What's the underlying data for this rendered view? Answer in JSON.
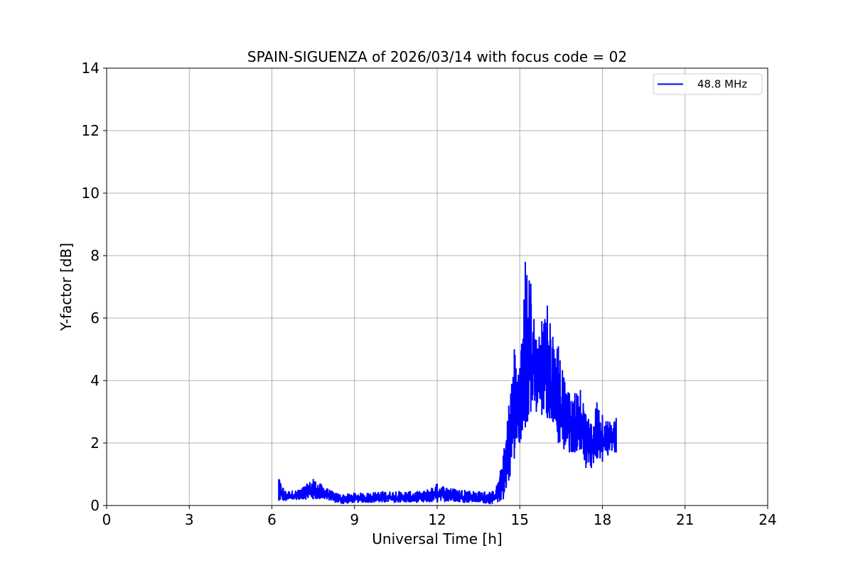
{
  "chart_data": {
    "type": "line",
    "title": "SPAIN-SIGUENZA of 2026/03/14 with focus code = 02",
    "xlabel": "Universal Time [h]",
    "ylabel": "Y-factor [dB]",
    "xlim": [
      0,
      24
    ],
    "ylim": [
      0,
      14
    ],
    "xticks": [
      "0",
      "3",
      "6",
      "9",
      "12",
      "15",
      "18",
      "21",
      "24"
    ],
    "yticks": [
      "0",
      "2",
      "4",
      "6",
      "8",
      "10",
      "12",
      "14"
    ],
    "grid": true,
    "legend_position": "top-right",
    "series": [
      {
        "name": "48.8 MHz",
        "color": "#0000ff",
        "x": [
          6.25,
          6.5,
          7.0,
          7.5,
          8.0,
          8.3,
          8.6,
          9.0,
          9.5,
          10.0,
          10.5,
          11.0,
          11.5,
          12.0,
          12.5,
          13.0,
          13.5,
          14.0,
          14.2,
          14.4,
          14.6,
          14.8,
          15.0,
          15.2,
          15.4,
          15.6,
          15.8,
          16.0,
          16.2,
          16.4,
          16.6,
          16.8,
          17.0,
          17.2,
          17.4,
          17.6,
          17.8,
          18.0,
          18.2,
          18.5
        ],
        "upper": [
          0.85,
          0.45,
          0.5,
          0.85,
          0.55,
          0.4,
          0.35,
          0.4,
          0.4,
          0.45,
          0.45,
          0.45,
          0.45,
          0.7,
          0.55,
          0.5,
          0.45,
          0.45,
          0.7,
          1.6,
          3.2,
          5.0,
          4.4,
          7.8,
          7.1,
          5.3,
          5.9,
          6.4,
          5.4,
          5.1,
          4.1,
          3.6,
          3.6,
          3.7,
          2.9,
          2.6,
          3.3,
          2.9,
          2.7,
          2.8
        ],
        "lower": [
          0.15,
          0.15,
          0.2,
          0.2,
          0.2,
          0.1,
          0.05,
          0.1,
          0.1,
          0.1,
          0.1,
          0.1,
          0.1,
          0.1,
          0.15,
          0.1,
          0.1,
          0.05,
          0.1,
          0.2,
          0.8,
          1.5,
          2.0,
          2.5,
          3.0,
          3.0,
          2.9,
          2.8,
          2.7,
          2.0,
          1.8,
          1.7,
          1.7,
          1.8,
          1.2,
          1.2,
          1.5,
          1.4,
          1.6,
          1.7
        ]
      }
    ]
  }
}
